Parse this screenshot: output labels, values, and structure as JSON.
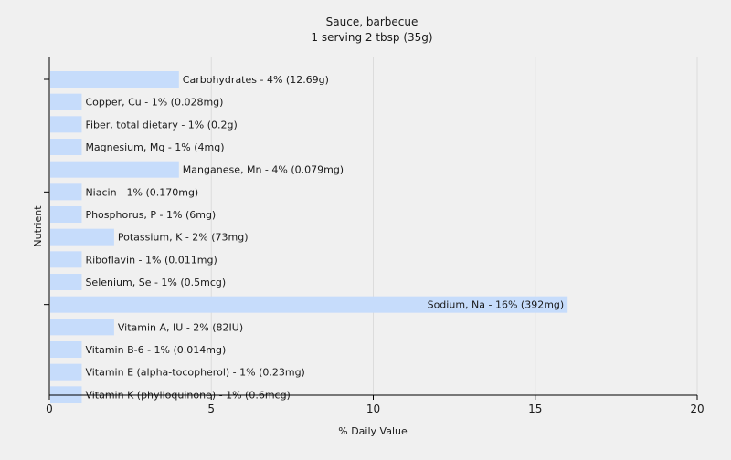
{
  "chart_data": {
    "type": "bar",
    "orientation": "horizontal",
    "title": "Sauce, barbecue",
    "subtitle": "1 serving 2 tbsp (35g)",
    "xlabel": "% Daily Value",
    "ylabel": "Nutrient",
    "xlim": [
      0,
      20
    ],
    "xticks": [
      0,
      5,
      10,
      15,
      20
    ],
    "grid": "vertical",
    "bar_color": "#c6dcfb",
    "categories": [
      "Carbohydrates",
      "Copper, Cu",
      "Fiber, total dietary",
      "Magnesium, Mg",
      "Manganese, Mn",
      "Niacin",
      "Phosphorus, P",
      "Potassium, K",
      "Riboflavin",
      "Selenium, Se",
      "Sodium, Na",
      "Vitamin A, IU",
      "Vitamin B-6",
      "Vitamin E (alpha-tocopherol)",
      "Vitamin K (phylloquinone)"
    ],
    "values": [
      4,
      1,
      1,
      1,
      4,
      1,
      1,
      2,
      1,
      1,
      16,
      2,
      1,
      1,
      1
    ],
    "amounts": [
      "12.69g",
      "0.028mg",
      "0.2g",
      "4mg",
      "0.079mg",
      "0.170mg",
      "6mg",
      "73mg",
      "0.011mg",
      "0.5mcg",
      "392mg",
      "82IU",
      "0.014mg",
      "0.23mg",
      "0.6mcg"
    ],
    "labels": [
      "Carbohydrates - 4% (12.69g)",
      "Copper, Cu - 1% (0.028mg)",
      "Fiber, total dietary - 1% (0.2g)",
      "Magnesium, Mg - 1% (4mg)",
      "Manganese, Mn - 4% (0.079mg)",
      "Niacin - 1% (0.170mg)",
      "Phosphorus, P - 1% (6mg)",
      "Potassium, K - 2% (73mg)",
      "Riboflavin - 1% (0.011mg)",
      "Selenium, Se - 1% (0.5mcg)",
      "Sodium, Na - 16% (392mg)",
      "Vitamin A, IU - 2% (82IU)",
      "Vitamin B-6 - 1% (0.014mg)",
      "Vitamin E (alpha-tocopherol) - 1% (0.23mg)",
      "Vitamin K (phylloquinone) - 1% (0.6mcg)"
    ]
  }
}
